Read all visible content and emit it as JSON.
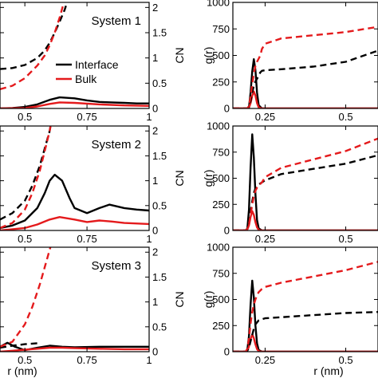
{
  "colors": {
    "interface": "#000000",
    "bulk": "#e41a1c"
  },
  "legend": {
    "interface": "Interface",
    "bulk": "Bulk"
  },
  "chart_data": [
    {
      "type": "line",
      "panel": "left-top",
      "title": "System 1",
      "xlabel": "",
      "ylabel_right": "CN",
      "xlim": [
        0.4,
        1.0
      ],
      "xticks": [
        "0.5",
        "0.75",
        "1"
      ],
      "ylim_right": [
        0,
        2.1
      ],
      "yticks_right": [
        "0",
        "0.5",
        "1",
        "1.5",
        "2"
      ],
      "grid": false,
      "legend_position": "center-right",
      "series": [
        {
          "key": "interface",
          "style": "solid",
          "x": [
            0.4,
            0.45,
            0.5,
            0.55,
            0.6,
            0.64,
            0.7,
            0.75,
            0.8,
            0.85,
            0.9,
            0.95,
            1.0
          ],
          "y": [
            0.0,
            0.01,
            0.03,
            0.08,
            0.17,
            0.22,
            0.2,
            0.16,
            0.13,
            0.12,
            0.11,
            0.1,
            0.1
          ]
        },
        {
          "key": "bulk",
          "style": "solid",
          "x": [
            0.4,
            0.5,
            0.55,
            0.6,
            0.64,
            0.7,
            0.8,
            0.9,
            1.0
          ],
          "y": [
            0.0,
            0.01,
            0.04,
            0.09,
            0.12,
            0.11,
            0.08,
            0.06,
            0.05
          ]
        },
        {
          "key": "interface",
          "style": "dashed",
          "x": [
            0.4,
            0.45,
            0.5,
            0.55,
            0.58,
            0.6,
            0.62,
            0.64,
            0.66,
            0.68,
            0.7
          ],
          "y": [
            0.78,
            0.8,
            0.86,
            1.0,
            1.15,
            1.3,
            1.5,
            1.72,
            1.95,
            2.25,
            2.6
          ]
        },
        {
          "key": "bulk",
          "style": "dashed",
          "x": [
            0.4,
            0.45,
            0.5,
            0.55,
            0.58,
            0.6,
            0.62,
            0.64,
            0.66,
            0.68
          ],
          "y": [
            0.38,
            0.45,
            0.6,
            0.85,
            1.05,
            1.25,
            1.5,
            1.8,
            2.15,
            2.6
          ]
        }
      ]
    },
    {
      "type": "line",
      "panel": "left-middle",
      "title": "System 2",
      "xlabel": "",
      "ylabel_right": "CN",
      "xlim": [
        0.4,
        1.0
      ],
      "xticks": [
        "0.5",
        "0.75",
        "1"
      ],
      "ylim_right": [
        0,
        2.1
      ],
      "yticks_right": [
        "0",
        "0.5",
        "1",
        "1.5",
        "2"
      ],
      "grid": false,
      "series": [
        {
          "key": "interface",
          "style": "solid",
          "x": [
            0.4,
            0.45,
            0.5,
            0.55,
            0.58,
            0.6,
            0.62,
            0.65,
            0.68,
            0.7,
            0.75,
            0.8,
            0.84,
            0.9,
            0.95,
            1.0
          ],
          "y": [
            0.05,
            0.1,
            0.2,
            0.45,
            0.75,
            1.0,
            1.12,
            1.0,
            0.65,
            0.45,
            0.35,
            0.45,
            0.52,
            0.45,
            0.42,
            0.4
          ]
        },
        {
          "key": "bulk",
          "style": "solid",
          "x": [
            0.4,
            0.5,
            0.55,
            0.6,
            0.64,
            0.7,
            0.75,
            0.8,
            0.85,
            0.9,
            1.0
          ],
          "y": [
            0.0,
            0.05,
            0.12,
            0.22,
            0.27,
            0.22,
            0.17,
            0.2,
            0.18,
            0.15,
            0.13
          ]
        },
        {
          "key": "interface",
          "style": "dashed",
          "x": [
            0.4,
            0.45,
            0.5,
            0.53,
            0.56,
            0.58,
            0.6,
            0.61,
            0.62
          ],
          "y": [
            0.22,
            0.35,
            0.6,
            0.9,
            1.3,
            1.65,
            2.0,
            2.3,
            2.6
          ]
        },
        {
          "key": "bulk",
          "style": "dashed",
          "x": [
            0.4,
            0.45,
            0.5,
            0.53,
            0.56,
            0.58,
            0.6,
            0.61,
            0.62
          ],
          "y": [
            0.05,
            0.15,
            0.42,
            0.75,
            1.2,
            1.6,
            2.0,
            2.3,
            2.6
          ]
        }
      ]
    },
    {
      "type": "line",
      "panel": "left-bottom",
      "title": "System 3",
      "xlabel": "r (nm)",
      "ylabel_right": "CN",
      "xlim": [
        0.4,
        1.0
      ],
      "xticks": [
        "0.5",
        "0.75",
        "1"
      ],
      "ylim_right": [
        0,
        2.1
      ],
      "yticks_right": [
        "0",
        "0.5",
        "1",
        "1.5",
        "2"
      ],
      "grid": false,
      "series": [
        {
          "key": "interface",
          "style": "solid",
          "x": [
            0.4,
            0.43,
            0.46,
            0.5,
            0.55,
            0.6,
            0.65,
            0.7,
            0.8,
            0.9,
            1.0
          ],
          "y": [
            0.1,
            0.18,
            0.1,
            0.03,
            0.08,
            0.12,
            0.1,
            0.09,
            0.1,
            0.1,
            0.1
          ]
        },
        {
          "key": "bulk",
          "style": "solid",
          "x": [
            0.4,
            0.45,
            0.5,
            0.55,
            0.6,
            0.65,
            0.7,
            0.8,
            0.9,
            1.0
          ],
          "y": [
            0.0,
            0.02,
            0.04,
            0.06,
            0.08,
            0.08,
            0.07,
            0.06,
            0.05,
            0.05
          ]
        },
        {
          "key": "interface",
          "style": "dashed",
          "x": [
            0.4,
            0.45,
            0.5,
            0.55
          ],
          "y": [
            0.08,
            0.12,
            0.15,
            0.17
          ]
        },
        {
          "key": "bulk",
          "style": "dashed",
          "x": [
            0.4,
            0.45,
            0.5,
            0.53,
            0.56,
            0.58,
            0.6,
            0.62,
            0.64
          ],
          "y": [
            0.1,
            0.2,
            0.55,
            0.9,
            1.35,
            1.7,
            2.05,
            2.4,
            2.7
          ]
        }
      ]
    },
    {
      "type": "line",
      "panel": "right-top",
      "title": "",
      "xlabel": "",
      "ylabel_left": "g(r)",
      "xlim": [
        0.15,
        0.6
      ],
      "xticks": [
        "0.25",
        "0.5"
      ],
      "ylim": [
        0,
        1000
      ],
      "yticks": [
        "0",
        "250",
        "500",
        "750",
        "1000"
      ],
      "grid": false,
      "series": [
        {
          "key": "interface",
          "style": "solid",
          "x": [
            0.15,
            0.195,
            0.2,
            0.205,
            0.21,
            0.215,
            0.22,
            0.225,
            0.23,
            0.24,
            0.6
          ],
          "y": [
            0,
            0,
            10,
            150,
            350,
            465,
            360,
            150,
            30,
            0,
            0
          ]
        },
        {
          "key": "bulk",
          "style": "solid",
          "x": [
            0.15,
            0.195,
            0.2,
            0.205,
            0.21,
            0.215,
            0.22,
            0.225,
            0.23,
            0.24,
            0.6
          ],
          "y": [
            0,
            0,
            5,
            50,
            120,
            160,
            120,
            50,
            10,
            0,
            0
          ]
        },
        {
          "key": "interface",
          "style": "dashed",
          "x": [
            0.15,
            0.195,
            0.2,
            0.205,
            0.21,
            0.215,
            0.22,
            0.225,
            0.23,
            0.235,
            0.24,
            0.25,
            0.3,
            0.4,
            0.5,
            0.6
          ],
          "y": [
            0,
            0,
            15,
            70,
            150,
            215,
            255,
            280,
            310,
            340,
            355,
            360,
            370,
            395,
            440,
            545
          ]
        },
        {
          "key": "bulk",
          "style": "dashed",
          "x": [
            0.15,
            0.195,
            0.2,
            0.205,
            0.21,
            0.215,
            0.22,
            0.225,
            0.23,
            0.235,
            0.24,
            0.25,
            0.3,
            0.4,
            0.5,
            0.6
          ],
          "y": [
            0,
            0,
            25,
            110,
            230,
            330,
            400,
            440,
            470,
            500,
            560,
            610,
            660,
            690,
            720,
            770
          ]
        }
      ]
    },
    {
      "type": "line",
      "panel": "right-middle",
      "title": "",
      "xlabel": "",
      "ylabel_left": "g(r)",
      "xlim": [
        0.15,
        0.6
      ],
      "xticks": [
        "0.25",
        "0.5"
      ],
      "ylim": [
        0,
        1000
      ],
      "yticks": [
        "0",
        "250",
        "500",
        "750",
        "1000"
      ],
      "grid": false,
      "series": [
        {
          "key": "interface",
          "style": "solid",
          "x": [
            0.15,
            0.19,
            0.195,
            0.2,
            0.205,
            0.21,
            0.215,
            0.22,
            0.225,
            0.23,
            0.24,
            0.6
          ],
          "y": [
            0,
            0,
            20,
            200,
            600,
            920,
            700,
            350,
            100,
            20,
            0,
            0
          ]
        },
        {
          "key": "bulk",
          "style": "solid",
          "x": [
            0.15,
            0.19,
            0.195,
            0.2,
            0.205,
            0.21,
            0.215,
            0.22,
            0.225,
            0.23,
            0.24,
            0.6
          ],
          "y": [
            0,
            0,
            10,
            50,
            130,
            185,
            150,
            80,
            30,
            5,
            0,
            0
          ]
        },
        {
          "key": "interface",
          "style": "dashed",
          "x": [
            0.15,
            0.19,
            0.195,
            0.2,
            0.205,
            0.21,
            0.215,
            0.22,
            0.225,
            0.23,
            0.24,
            0.25,
            0.3,
            0.4,
            0.5,
            0.6
          ],
          "y": [
            0,
            0,
            15,
            80,
            180,
            280,
            360,
            400,
            420,
            440,
            460,
            480,
            540,
            590,
            640,
            720
          ]
        },
        {
          "key": "bulk",
          "style": "dashed",
          "x": [
            0.15,
            0.19,
            0.195,
            0.2,
            0.205,
            0.21,
            0.215,
            0.22,
            0.225,
            0.23,
            0.24,
            0.25,
            0.3,
            0.4,
            0.5,
            0.6
          ],
          "y": [
            0,
            0,
            15,
            60,
            150,
            250,
            330,
            380,
            410,
            430,
            460,
            510,
            600,
            680,
            760,
            880
          ]
        }
      ]
    },
    {
      "type": "line",
      "panel": "right-bottom",
      "title": "",
      "xlabel": "r (nm)",
      "ylabel_left": "g(r)",
      "xlim": [
        0.15,
        0.6
      ],
      "xticks": [
        "0.25",
        "0.5"
      ],
      "ylim": [
        0,
        1000
      ],
      "yticks": [
        "0",
        "250",
        "500",
        "750",
        "1000"
      ],
      "grid": false,
      "series": [
        {
          "key": "interface",
          "style": "solid",
          "x": [
            0.15,
            0.19,
            0.195,
            0.2,
            0.205,
            0.21,
            0.215,
            0.22,
            0.225,
            0.23,
            0.24,
            0.6
          ],
          "y": [
            0,
            0,
            20,
            150,
            450,
            680,
            520,
            250,
            80,
            15,
            0,
            0
          ]
        },
        {
          "key": "bulk",
          "style": "solid",
          "x": [
            0.15,
            0.19,
            0.195,
            0.2,
            0.205,
            0.21,
            0.215,
            0.22,
            0.225,
            0.23,
            0.24,
            0.6
          ],
          "y": [
            0,
            0,
            10,
            50,
            120,
            165,
            130,
            70,
            25,
            5,
            0,
            0
          ]
        },
        {
          "key": "interface",
          "style": "dashed",
          "x": [
            0.15,
            0.19,
            0.195,
            0.2,
            0.205,
            0.21,
            0.215,
            0.22,
            0.225,
            0.23,
            0.24,
            0.25,
            0.3,
            0.4,
            0.5,
            0.6
          ],
          "y": [
            0,
            0,
            10,
            40,
            100,
            160,
            220,
            260,
            280,
            300,
            310,
            320,
            330,
            350,
            370,
            380
          ]
        },
        {
          "key": "bulk",
          "style": "dashed",
          "x": [
            0.15,
            0.19,
            0.195,
            0.2,
            0.205,
            0.21,
            0.215,
            0.22,
            0.225,
            0.23,
            0.24,
            0.25,
            0.3,
            0.4,
            0.5,
            0.6
          ],
          "y": [
            0,
            0,
            30,
            130,
            270,
            380,
            450,
            500,
            540,
            570,
            600,
            620,
            660,
            720,
            780,
            860
          ]
        }
      ]
    }
  ]
}
